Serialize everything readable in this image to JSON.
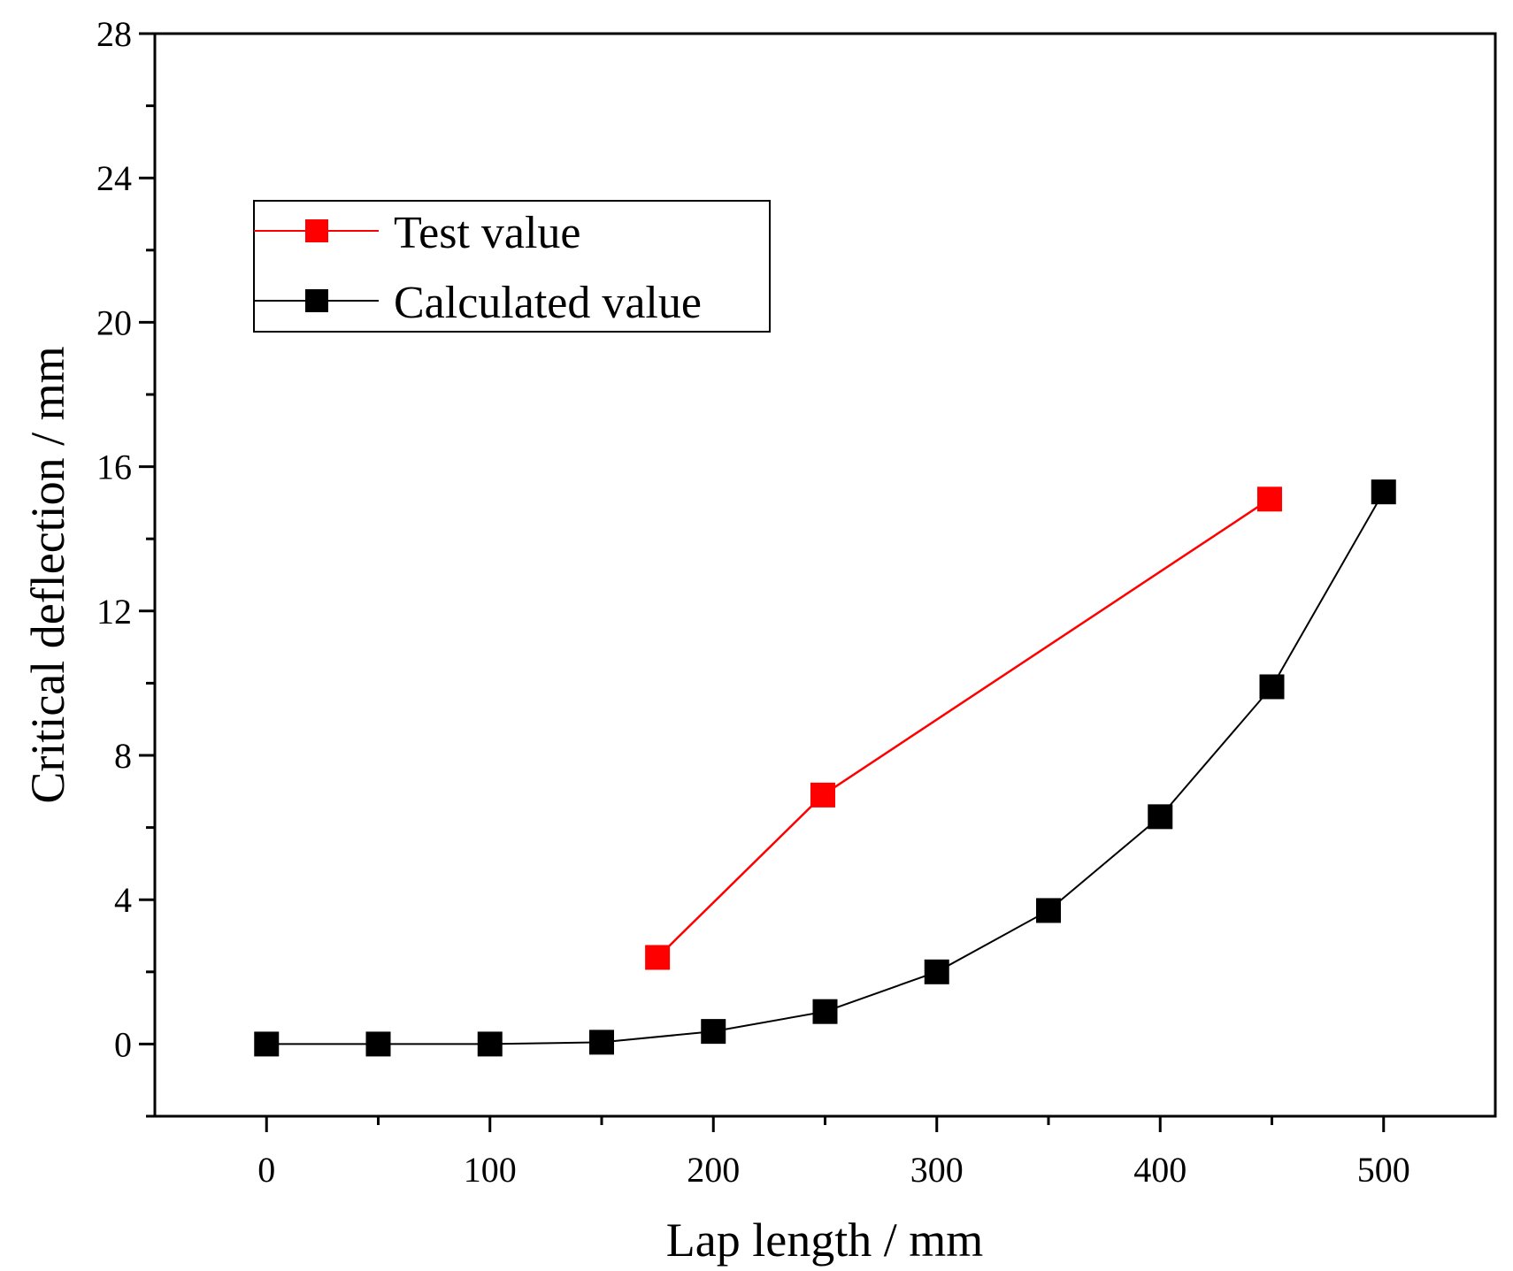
{
  "chart_data": {
    "type": "line",
    "title": "",
    "xlabel": "Lap length / mm",
    "ylabel": "Critical deflection / mm",
    "xlim": [
      -50,
      550
    ],
    "ylim": [
      -2,
      28
    ],
    "xticks": [
      0,
      100,
      200,
      300,
      400,
      500
    ],
    "yticks": [
      0,
      4,
      8,
      12,
      16,
      20,
      24,
      28
    ],
    "xticks_minor": [
      50,
      150,
      250,
      350,
      450
    ],
    "grid": false,
    "legend_position": "upper-left",
    "series": [
      {
        "name": "Test value",
        "color": "#ff0000",
        "marker": "square",
        "x": [
          175,
          249,
          449
        ],
        "y": [
          2.4,
          6.9,
          15.1
        ]
      },
      {
        "name": "Calculated value",
        "color": "#000000",
        "marker": "square",
        "x": [
          0,
          50,
          100,
          150,
          200,
          250,
          300,
          350,
          400,
          450,
          500
        ],
        "y": [
          0.0,
          0.0,
          0.0,
          0.05,
          0.35,
          0.9,
          2.0,
          3.7,
          6.3,
          9.9,
          15.3
        ]
      }
    ]
  }
}
